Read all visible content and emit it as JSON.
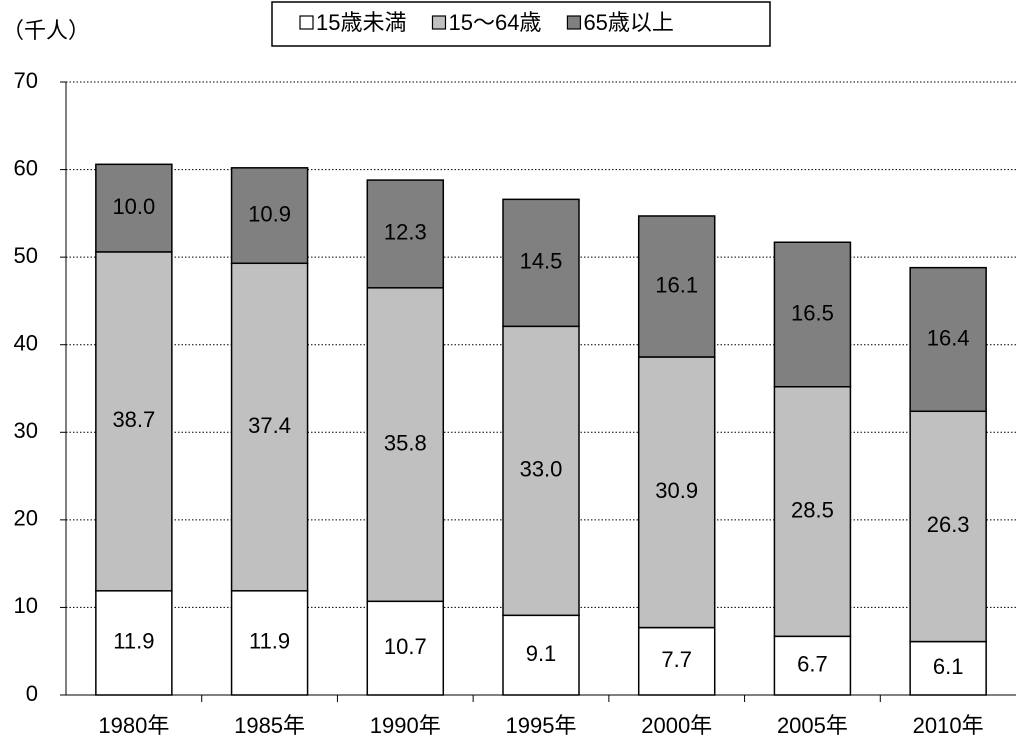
{
  "chart_data": {
    "type": "stacked_bar",
    "y_label": "（千人）",
    "categories": [
      "1980年",
      "1985年",
      "1990年",
      "1995年",
      "2000年",
      "2005年",
      "2010年"
    ],
    "series": [
      {
        "name": "15歳未満",
        "color": "#ffffff",
        "values": [
          11.9,
          11.9,
          10.7,
          9.1,
          7.7,
          6.7,
          6.1
        ],
        "value_labels": [
          "11.9",
          "11.9",
          "10.7",
          "9.1",
          "7.7",
          "6.7",
          "6.1"
        ]
      },
      {
        "name": "15～64歳",
        "color": "#c0c0c0",
        "values": [
          38.7,
          37.4,
          35.8,
          33.0,
          30.9,
          28.5,
          26.3
        ],
        "value_labels": [
          "38.7",
          "37.4",
          "35.8",
          "33.0",
          "30.9",
          "28.5",
          "26.3"
        ]
      },
      {
        "name": "65歳以上",
        "color": "#808080",
        "values": [
          10.0,
          10.9,
          12.3,
          14.5,
          16.1,
          16.5,
          16.4
        ],
        "value_labels": [
          "10.0",
          "10.9",
          "12.3",
          "14.5",
          "16.1",
          "16.5",
          "16.4"
        ]
      }
    ],
    "ylim": [
      0,
      70
    ],
    "yticks": [
      0,
      10,
      20,
      30,
      40,
      50,
      60,
      70
    ],
    "grid": true,
    "legend": "top"
  }
}
